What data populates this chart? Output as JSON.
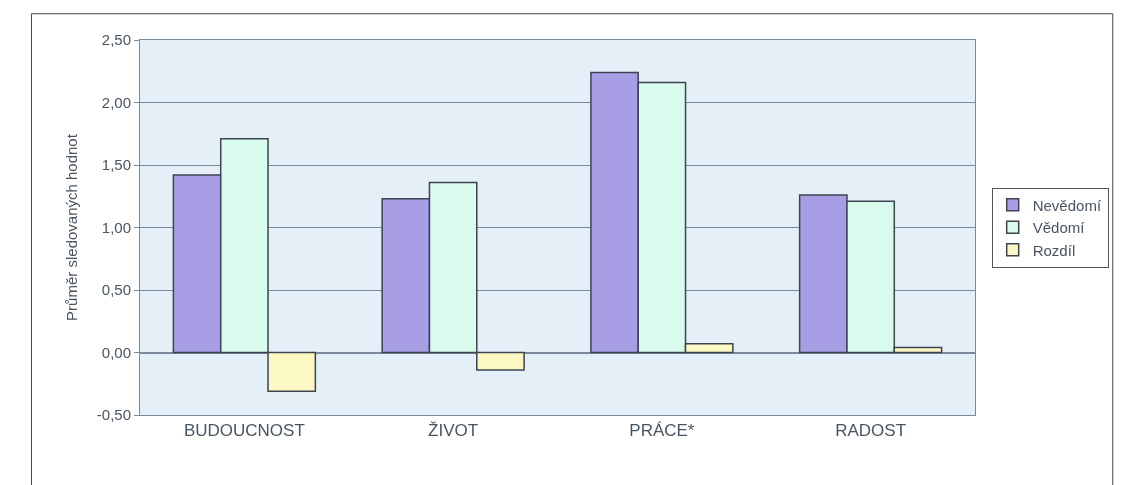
{
  "chart_data": {
    "type": "bar",
    "ylabel": "Průměr sledovaných hodnot",
    "categories": [
      "BUDOUCNOST",
      "ŽIVOT",
      "PRÁCE*",
      "RADOST"
    ],
    "series": [
      {
        "name": "Nevědomí",
        "color": "#a89ee6",
        "values": [
          1.42,
          1.23,
          2.24,
          1.26
        ]
      },
      {
        "name": "Vědomí",
        "color": "#d8fbee",
        "values": [
          1.71,
          1.36,
          2.16,
          1.21
        ]
      },
      {
        "name": "Rozdíl",
        "color": "#fbf8c4",
        "values": [
          -0.31,
          -0.14,
          0.07,
          0.04
        ]
      }
    ],
    "ylim": [
      -0.5,
      2.5
    ],
    "yticks": [
      {
        "value": -0.5,
        "label": "-0,50"
      },
      {
        "value": 0,
        "label": "0,00"
      },
      {
        "value": 0.5,
        "label": "0,50"
      },
      {
        "value": 1,
        "label": "1,00"
      },
      {
        "value": 1.5,
        "label": "1,50"
      },
      {
        "value": 2,
        "label": "2,00"
      },
      {
        "value": 2.5,
        "label": "2,50"
      }
    ],
    "grid": "y",
    "legend": "right"
  }
}
